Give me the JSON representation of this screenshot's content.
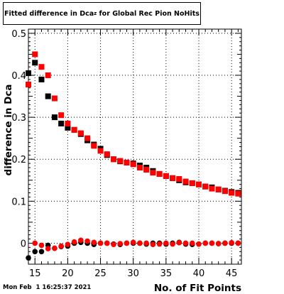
{
  "chart_data": {
    "type": "scatter",
    "title_main": "Fitted difference in Dca",
    "title_sub": "z",
    "title_rest": " for Global Rec Pion NoHits",
    "xlabel": "No. of Fit Points",
    "ylabel": "difference in Dca",
    "xlim": [
      14,
      46.5
    ],
    "ylim": [
      -0.05,
      0.51
    ],
    "x_ticks": [
      "15",
      "20",
      "25",
      "30",
      "35",
      "40",
      "45"
    ],
    "y_ticks": [
      "0",
      "0.1",
      "0.2",
      "0.3",
      "0.4",
      "0.5"
    ],
    "grid": true,
    "series": [
      {
        "color": "#000000",
        "marker": "square",
        "points": [
          [
            14,
            0.405
          ],
          [
            15,
            0.43
          ],
          [
            16,
            0.39
          ],
          [
            17,
            0.35
          ],
          [
            18,
            0.3
          ],
          [
            19,
            0.285
          ],
          [
            20,
            0.275
          ],
          [
            21,
            0.27
          ],
          [
            22,
            0.26
          ],
          [
            23,
            0.245
          ],
          [
            24,
            0.235
          ],
          [
            25,
            0.225
          ],
          [
            26,
            0.21
          ],
          [
            27,
            0.2
          ],
          [
            28,
            0.195
          ],
          [
            29,
            0.192
          ],
          [
            30,
            0.19
          ],
          [
            31,
            0.185
          ],
          [
            32,
            0.18
          ],
          [
            33,
            0.172
          ],
          [
            34,
            0.165
          ],
          [
            35,
            0.16
          ],
          [
            36,
            0.155
          ],
          [
            37,
            0.15
          ],
          [
            38,
            0.145
          ],
          [
            39,
            0.143
          ],
          [
            40,
            0.14
          ],
          [
            41,
            0.135
          ],
          [
            42,
            0.133
          ],
          [
            43,
            0.128
          ],
          [
            44,
            0.125
          ],
          [
            45,
            0.122
          ],
          [
            46,
            0.12
          ]
        ]
      },
      {
        "color": "#ff0000",
        "marker": "square",
        "points": [
          [
            14,
            0.378
          ],
          [
            15,
            0.45
          ],
          [
            16,
            0.42
          ],
          [
            17,
            0.4
          ],
          [
            18,
            0.345
          ],
          [
            19,
            0.305
          ],
          [
            20,
            0.285
          ],
          [
            21,
            0.27
          ],
          [
            22,
            0.262
          ],
          [
            23,
            0.25
          ],
          [
            24,
            0.232
          ],
          [
            25,
            0.22
          ],
          [
            26,
            0.212
          ],
          [
            27,
            0.2
          ],
          [
            28,
            0.196
          ],
          [
            29,
            0.192
          ],
          [
            30,
            0.188
          ],
          [
            31,
            0.18
          ],
          [
            32,
            0.175
          ],
          [
            33,
            0.168
          ],
          [
            34,
            0.165
          ],
          [
            35,
            0.16
          ],
          [
            36,
            0.155
          ],
          [
            37,
            0.153
          ],
          [
            38,
            0.147
          ],
          [
            39,
            0.143
          ],
          [
            40,
            0.14
          ],
          [
            41,
            0.135
          ],
          [
            42,
            0.13
          ],
          [
            43,
            0.128
          ],
          [
            44,
            0.124
          ],
          [
            45,
            0.12
          ],
          [
            46,
            0.118
          ]
        ]
      },
      {
        "color": "#000000",
        "marker": "circle",
        "points": [
          [
            14,
            -0.035
          ],
          [
            15,
            -0.02
          ],
          [
            16,
            -0.02
          ],
          [
            17,
            -0.005
          ],
          [
            18,
            -0.012
          ],
          [
            19,
            -0.008
          ],
          [
            20,
            -0.007
          ],
          [
            21,
            0.0
          ],
          [
            22,
            0.002
          ],
          [
            23,
            0.0
          ],
          [
            24,
            -0.003
          ],
          [
            25,
            0.0
          ],
          [
            26,
            0.0
          ],
          [
            27,
            -0.002
          ],
          [
            28,
            -0.003
          ],
          [
            29,
            0.0
          ],
          [
            30,
            0.0
          ],
          [
            31,
            0.0
          ],
          [
            32,
            -0.002
          ],
          [
            33,
            0.0
          ],
          [
            34,
            0.0
          ],
          [
            35,
            -0.002
          ],
          [
            36,
            0.0
          ],
          [
            37,
            0.002
          ],
          [
            38,
            -0.002
          ],
          [
            39,
            -0.003
          ],
          [
            40,
            -0.002
          ],
          [
            41,
            0.0
          ],
          [
            42,
            0.0
          ],
          [
            43,
            -0.001
          ],
          [
            44,
            0.0
          ],
          [
            45,
            0.0
          ],
          [
            46,
            0.0
          ]
        ]
      },
      {
        "color": "#ff0000",
        "marker": "circle",
        "points": [
          [
            15,
            0.0
          ],
          [
            16,
            -0.005
          ],
          [
            17,
            -0.013
          ],
          [
            18,
            -0.012
          ],
          [
            19,
            -0.007
          ],
          [
            20,
            -0.003
          ],
          [
            21,
            0.003
          ],
          [
            22,
            0.007
          ],
          [
            23,
            0.005
          ],
          [
            24,
            0.002
          ],
          [
            25,
            0.0
          ],
          [
            26,
            0.0
          ],
          [
            27,
            -0.003
          ],
          [
            28,
            -0.001
          ],
          [
            29,
            0.0
          ],
          [
            30,
            0.002
          ],
          [
            31,
            0.0
          ],
          [
            32,
            0.0
          ],
          [
            33,
            -0.003
          ],
          [
            34,
            -0.002
          ],
          [
            35,
            0.0
          ],
          [
            36,
            -0.002
          ],
          [
            37,
            0.001
          ],
          [
            38,
            0.0
          ],
          [
            39,
            0.0
          ],
          [
            40,
            -0.002
          ],
          [
            41,
            0.0
          ],
          [
            42,
            0.0
          ],
          [
            43,
            -0.001
          ],
          [
            44,
            0.0
          ],
          [
            45,
            0.001
          ],
          [
            46,
            0.0
          ]
        ]
      }
    ]
  },
  "footer": {
    "timestamp": "Mon Feb  1 16:25:37 2021"
  }
}
